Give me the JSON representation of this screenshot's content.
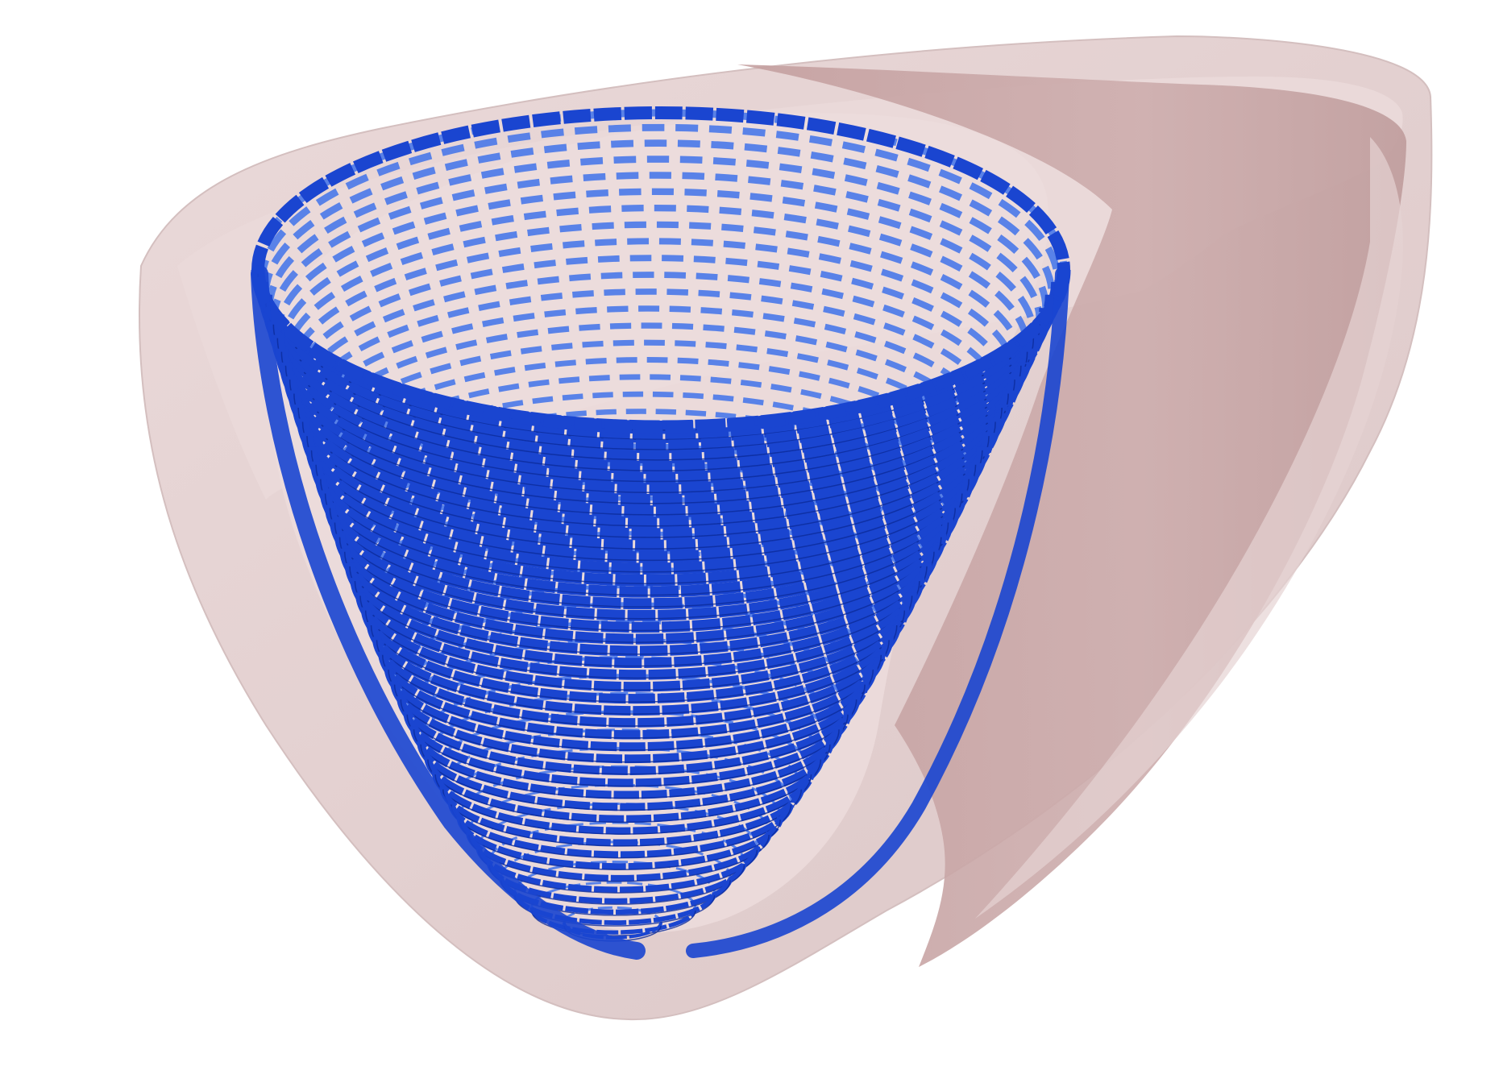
{
  "scene": {
    "background": "#ffffff",
    "outer_shell_color": "#e3d2d2",
    "shell_edge_color": "#d8c2c2",
    "cut_surface_color": "#c9a7a7",
    "cut_surface_shadow": "#b99696",
    "cavity_color": "#e9d8d8",
    "fiber_color": "#1a45d0",
    "fiber_dark": "#0b2a9a",
    "fiber_light": "#3f72ea",
    "fiber_ring_count": 46
  }
}
